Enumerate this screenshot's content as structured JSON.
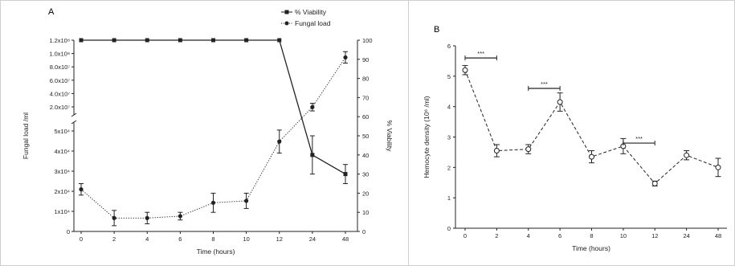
{
  "chart_data": [
    {
      "panel": "A",
      "type": "line",
      "categories": [
        "0",
        "2",
        "4",
        "6",
        "8",
        "10",
        "12",
        "24",
        "48"
      ],
      "xlabel": "Time (hours)",
      "ylabel_left": "Fungal load /ml",
      "ylabel_right": "% Viability",
      "yticks_left_lower": [
        "0",
        "1x10⁴",
        "2x10⁴",
        "3x10⁴",
        "4x10⁴",
        "5x10⁴"
      ],
      "yticks_left_upper": [
        "2.0x10⁷",
        "4.0x10⁷",
        "6.0x10⁷",
        "8.0x10⁷",
        "1.0x10⁸",
        "1.2x10⁸"
      ],
      "yticks_right": [
        "0",
        "10",
        "20",
        "30",
        "40",
        "50",
        "60",
        "70",
        "80",
        "90",
        "100"
      ],
      "ylim_right": [
        0,
        100
      ],
      "grid": false,
      "legend_position": "top-right",
      "series": [
        {
          "name": "% Viability",
          "axis": "right",
          "marker": "square",
          "line": "solid",
          "values": [
            100,
            100,
            100,
            100,
            100,
            100,
            100,
            40,
            30
          ],
          "errors": [
            0,
            0,
            0,
            0,
            0,
            0,
            0,
            10,
            5
          ]
        },
        {
          "name": "Fungal load",
          "axis": "right-scale-display",
          "marker": "circle",
          "line": "dotted",
          "values_display_scale": [
            22,
            7,
            7,
            8,
            15,
            16,
            47,
            65,
            91
          ],
          "errors_display_scale": [
            3,
            4,
            3,
            2,
            5,
            4,
            6,
            2,
            3
          ]
        }
      ]
    },
    {
      "panel": "B",
      "type": "line",
      "categories": [
        "0",
        "2",
        "4",
        "6",
        "8",
        "10",
        "12",
        "24",
        "48"
      ],
      "xlabel": "Time (hours)",
      "ylabel": "Hemocyte density (10⁶ /ml)",
      "yticks": [
        "0",
        "1",
        "2",
        "3",
        "4",
        "5",
        "6"
      ],
      "ylim": [
        0,
        6
      ],
      "grid": false,
      "series": [
        {
          "marker": "open-circle",
          "line": "dashed",
          "values": [
            5.2,
            2.55,
            2.6,
            4.15,
            2.35,
            2.7,
            1.47,
            2.4,
            2.0
          ],
          "errors": [
            0.15,
            0.2,
            0.15,
            0.3,
            0.2,
            0.25,
            0.08,
            0.15,
            0.3
          ]
        }
      ],
      "significance": [
        {
          "from": "0",
          "to": "2",
          "label": "***",
          "y": 5.6
        },
        {
          "from": "4",
          "to": "6",
          "label": "***",
          "y": 4.6
        },
        {
          "from": "10",
          "to": "12",
          "label": "***",
          "y": 2.8
        }
      ]
    }
  ]
}
